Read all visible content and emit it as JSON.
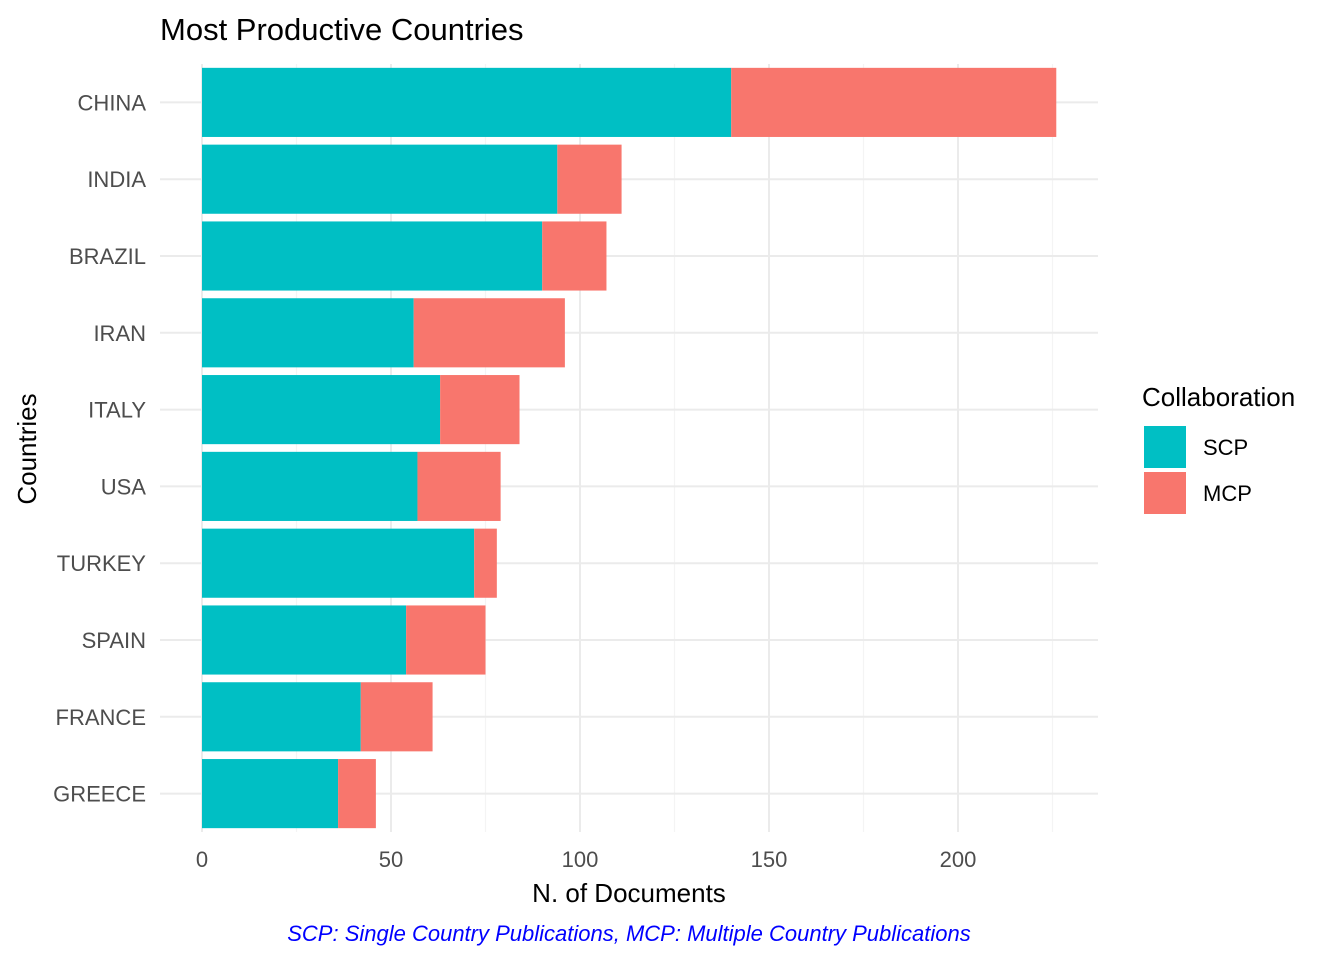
{
  "chart_data": {
    "type": "bar",
    "orientation": "horizontal",
    "stacked": true,
    "title": "Most Productive Countries",
    "xlabel": "N. of Documents",
    "ylabel": "Countries",
    "caption": "SCP: Single Country Publications, MCP: Multiple Country Publications",
    "categories": [
      "CHINA",
      "INDIA",
      "BRAZIL",
      "IRAN",
      "ITALY",
      "USA",
      "TURKEY",
      "SPAIN",
      "FRANCE",
      "GREECE"
    ],
    "series": [
      {
        "name": "SCP",
        "color": "#00BFC4",
        "values": [
          140,
          94,
          90,
          56,
          63,
          57,
          72,
          54,
          42,
          36
        ]
      },
      {
        "name": "MCP",
        "color": "#F8766D",
        "values": [
          86,
          17,
          17,
          40,
          21,
          22,
          6,
          21,
          19,
          10
        ]
      }
    ],
    "xlim": [
      0,
      236
    ],
    "xticks": [
      0,
      50,
      100,
      150,
      200
    ],
    "grid": true,
    "legend": {
      "title": "Collaboration",
      "position": "right"
    }
  }
}
